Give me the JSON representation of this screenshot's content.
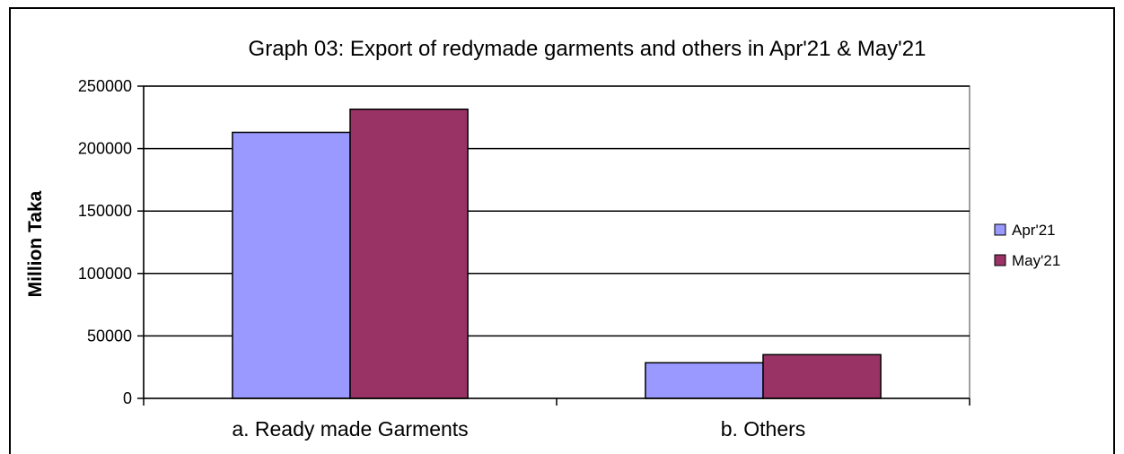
{
  "chart_data": {
    "type": "bar",
    "title": "Graph 03: Export of redymade garments and others in Apr'21 & May'21",
    "xlabel": "",
    "ylabel": "Million Taka",
    "categories": [
      "a. Ready made Garments",
      "b. Others"
    ],
    "series": [
      {
        "name": "Apr'21",
        "values": [
          213000,
          28500
        ],
        "color": "#9999ff"
      },
      {
        "name": "May'21",
        "values": [
          231500,
          35000
        ],
        "color": "#993366"
      }
    ],
    "ylim": [
      0,
      250000
    ],
    "yticks": [
      0,
      50000,
      100000,
      150000,
      200000,
      250000
    ],
    "ytick_labels": [
      "0",
      "50000",
      "100000",
      "150000",
      "200000",
      "250000"
    ],
    "grid": true,
    "legend_position": "right"
  }
}
